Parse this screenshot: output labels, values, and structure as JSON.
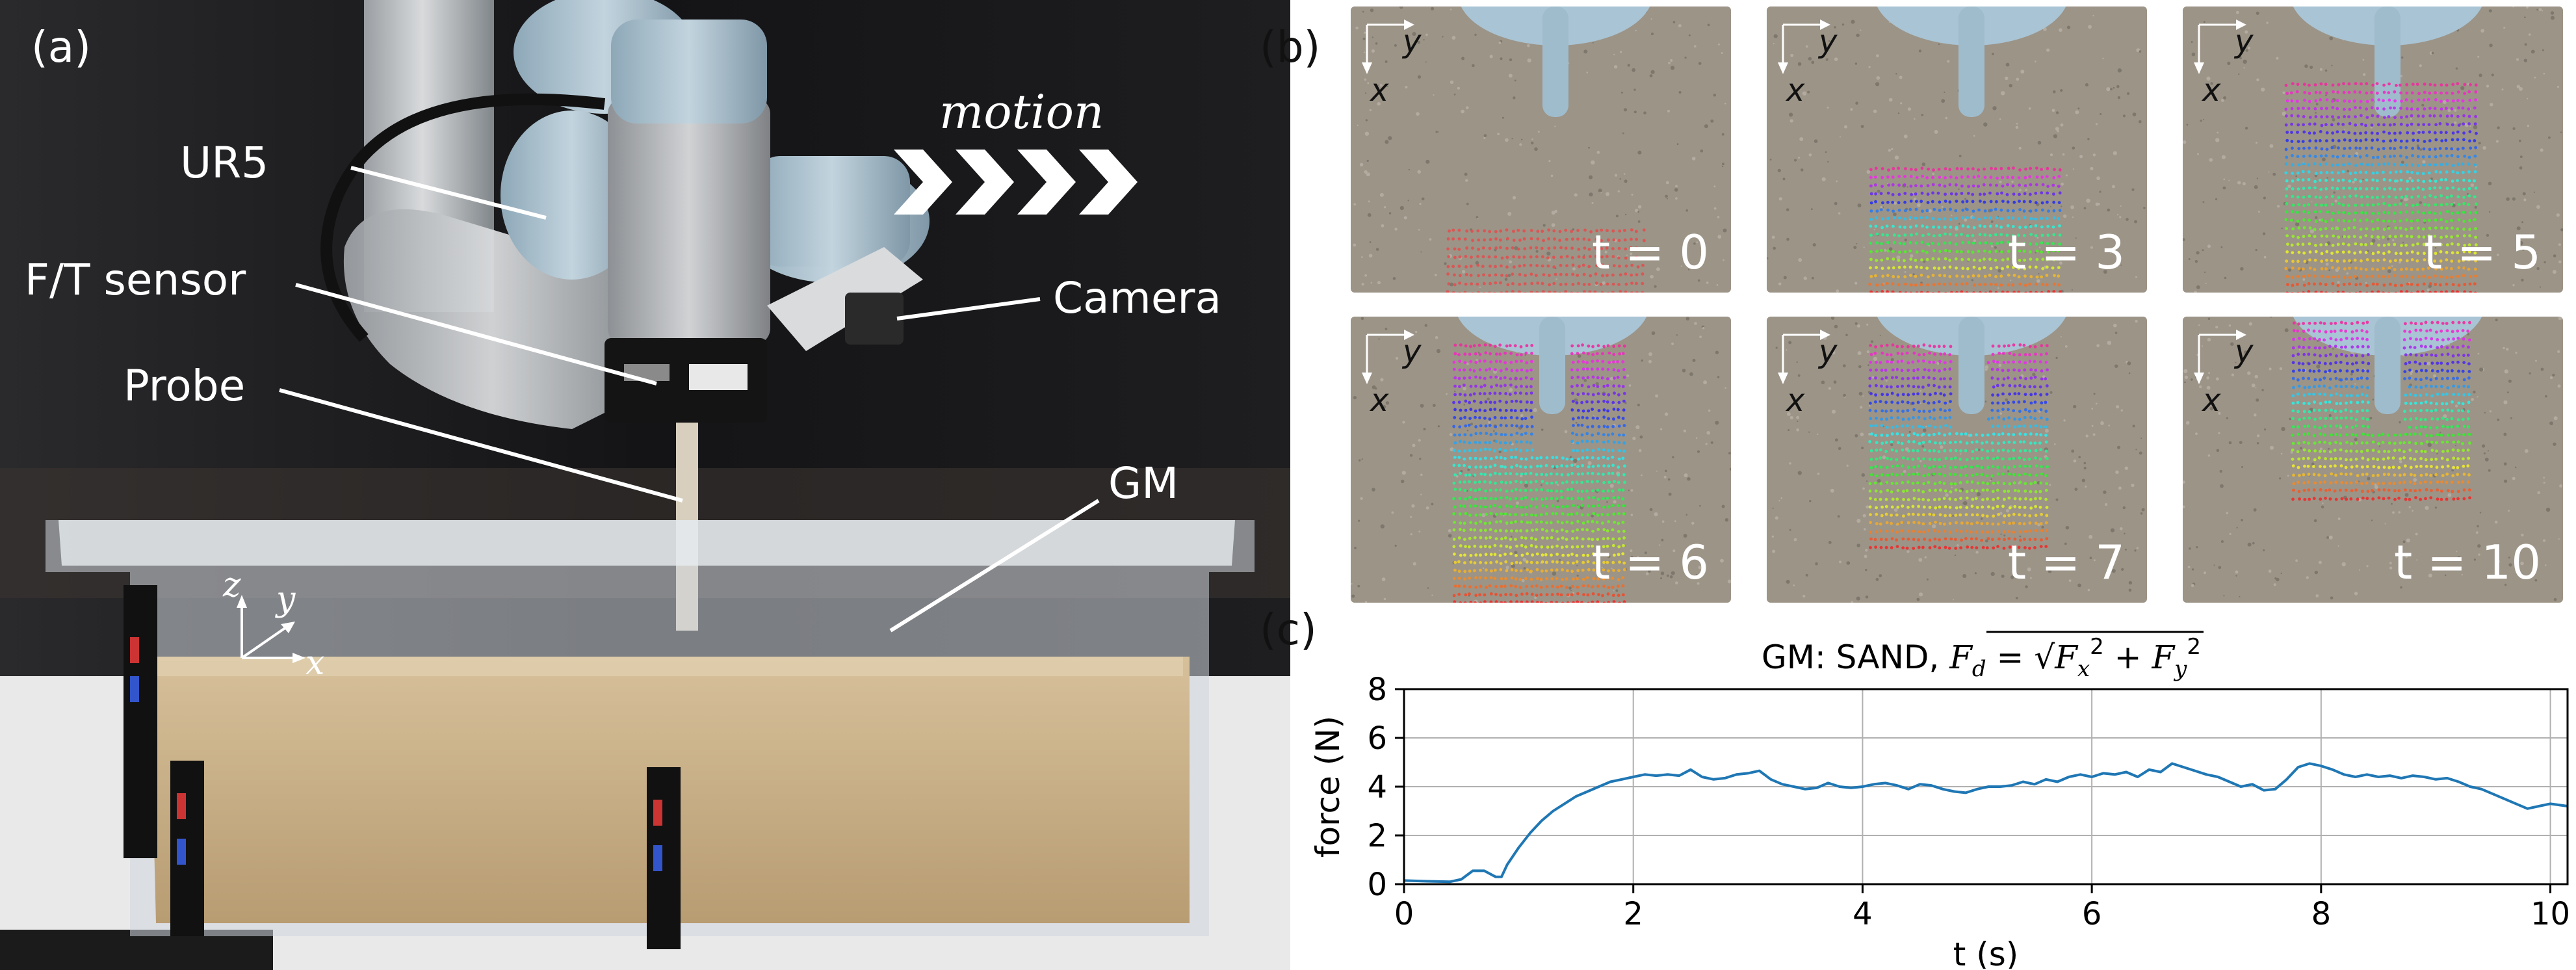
{
  "panel_a": {
    "letter": "(a)",
    "labels": {
      "ur5": "UR5",
      "ft_sensor": "F/T sensor",
      "probe": "Probe",
      "camera": "Camera",
      "gm": "GM",
      "motion": "motion"
    },
    "axes": {
      "z": "z",
      "y": "y",
      "x": "x"
    },
    "colors": {
      "backdrop": "#1a1a1c",
      "sand": "#c9b08a",
      "arm": "#a9bfcc",
      "container": "#dfe5ea"
    }
  },
  "panel_b": {
    "letter": "(b)",
    "axis_x": "x",
    "axis_y": "y",
    "frames": [
      "t = 0",
      "t = 3",
      "t = 5",
      "t = 6",
      "t = 7",
      "t = 10"
    ]
  },
  "panel_c": {
    "letter": "(c)",
    "chart_data": {
      "type": "line",
      "title": "GM: SAND, ",
      "title_math": {
        "lhs": "F",
        "lhs_sub": "d",
        "eq": " = ",
        "rad1": "F",
        "rad1_sub": "x",
        "rad1_sup": "2",
        "plus": " + ",
        "rad2": "F",
        "rad2_sub": "y",
        "rad2_sup": "2"
      },
      "xlabel": "t (s)",
      "ylabel": "force (N)",
      "xlim": [
        0,
        10.15
      ],
      "ylim": [
        0,
        8
      ],
      "xticks": [
        0,
        2,
        4,
        6,
        8,
        10
      ],
      "yticks": [
        0,
        2,
        4,
        6,
        8
      ],
      "grid": true,
      "line_color": "#1f77b4",
      "series": [
        {
          "x": [
            0,
            0.2,
            0.4,
            0.5,
            0.6,
            0.7,
            0.8,
            0.85,
            0.9,
            1.0,
            1.1,
            1.2,
            1.3,
            1.4,
            1.5,
            1.6,
            1.7,
            1.8,
            1.9,
            2.0,
            2.1,
            2.2,
            2.3,
            2.4,
            2.5,
            2.6,
            2.7,
            2.8,
            2.9,
            3.0,
            3.1,
            3.2,
            3.3,
            3.4,
            3.5,
            3.6,
            3.7,
            3.8,
            3.9,
            4.0,
            4.1,
            4.2,
            4.3,
            4.4,
            4.5,
            4.6,
            4.7,
            4.8,
            4.9,
            5.0,
            5.1,
            5.2,
            5.3,
            5.4,
            5.5,
            5.6,
            5.7,
            5.8,
            5.9,
            6.0,
            6.1,
            6.2,
            6.3,
            6.4,
            6.5,
            6.6,
            6.7,
            6.8,
            6.9,
            7.0,
            7.1,
            7.2,
            7.3,
            7.4,
            7.5,
            7.6,
            7.7,
            7.8,
            7.9,
            8.0,
            8.1,
            8.2,
            8.3,
            8.4,
            8.5,
            8.6,
            8.7,
            8.8,
            8.9,
            9.0,
            9.1,
            9.2,
            9.3,
            9.4,
            9.5,
            9.6,
            9.7,
            9.8,
            9.9,
            10.0,
            10.15
          ],
          "y": [
            0.15,
            0.12,
            0.1,
            0.2,
            0.55,
            0.55,
            0.3,
            0.3,
            0.8,
            1.5,
            2.1,
            2.6,
            3.0,
            3.3,
            3.6,
            3.8,
            4.0,
            4.2,
            4.3,
            4.4,
            4.5,
            4.45,
            4.5,
            4.45,
            4.7,
            4.4,
            4.3,
            4.35,
            4.5,
            4.55,
            4.65,
            4.3,
            4.1,
            4.0,
            3.9,
            3.95,
            4.15,
            4.0,
            3.95,
            4.0,
            4.1,
            4.15,
            4.05,
            3.9,
            4.1,
            4.05,
            3.9,
            3.8,
            3.75,
            3.9,
            4.0,
            4.0,
            4.05,
            4.2,
            4.1,
            4.3,
            4.2,
            4.4,
            4.5,
            4.4,
            4.55,
            4.5,
            4.6,
            4.4,
            4.7,
            4.6,
            4.95,
            4.8,
            4.65,
            4.5,
            4.4,
            4.2,
            4.0,
            4.1,
            3.85,
            3.9,
            4.3,
            4.8,
            4.95,
            4.85,
            4.7,
            4.5,
            4.4,
            4.5,
            4.4,
            4.45,
            4.35,
            4.45,
            4.4,
            4.3,
            4.35,
            4.2,
            4.0,
            3.9,
            3.7,
            3.5,
            3.3,
            3.1,
            3.2,
            3.3,
            3.2
          ]
        }
      ]
    }
  }
}
